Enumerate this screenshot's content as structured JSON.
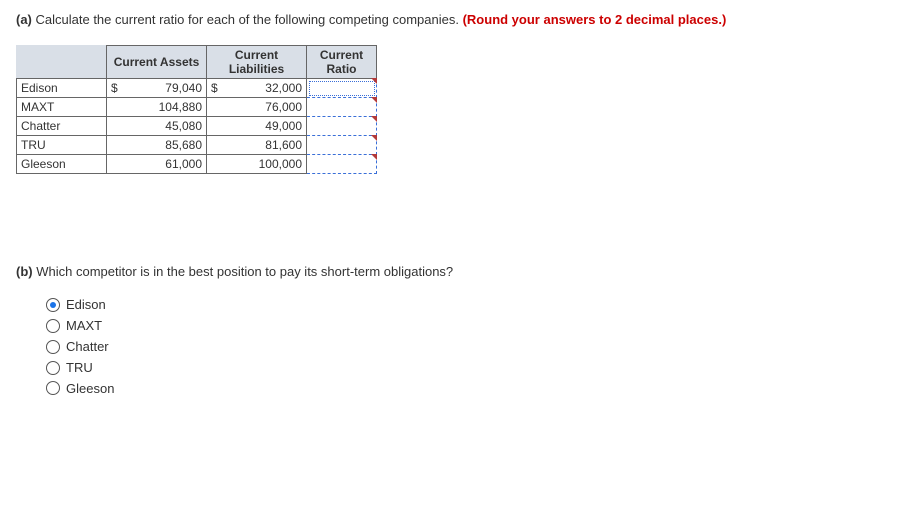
{
  "partA": {
    "label": "(a)",
    "text": "Calculate the current ratio for each of the following competing companies.",
    "note": "(Round your answers to 2 decimal places.)"
  },
  "table": {
    "headers": {
      "assets": "Current Assets",
      "liab": "Current Liabilities",
      "ratio": "Current Ratio"
    },
    "rows": [
      {
        "name": "Edison",
        "dollarA": "$",
        "assets": "79,040",
        "dollarL": "$",
        "liab": "32,000",
        "active": true
      },
      {
        "name": "MAXT",
        "dollarA": "",
        "assets": "104,880",
        "dollarL": "",
        "liab": "76,000",
        "active": false
      },
      {
        "name": "Chatter",
        "dollarA": "",
        "assets": "45,080",
        "dollarL": "",
        "liab": "49,000",
        "active": false
      },
      {
        "name": "TRU",
        "dollarA": "",
        "assets": "85,680",
        "dollarL": "",
        "liab": "81,600",
        "active": false
      },
      {
        "name": "Gleeson",
        "dollarA": "",
        "assets": "61,000",
        "dollarL": "",
        "liab": "100,000",
        "active": false
      }
    ]
  },
  "partB": {
    "label": "(b)",
    "text": "Which competitor is in the best position to pay its short-term obligations?"
  },
  "options": [
    {
      "label": "Edison",
      "checked": true
    },
    {
      "label": "MAXT",
      "checked": false
    },
    {
      "label": "Chatter",
      "checked": false
    },
    {
      "label": "TRU",
      "checked": false
    },
    {
      "label": "Gleeson",
      "checked": false
    }
  ]
}
